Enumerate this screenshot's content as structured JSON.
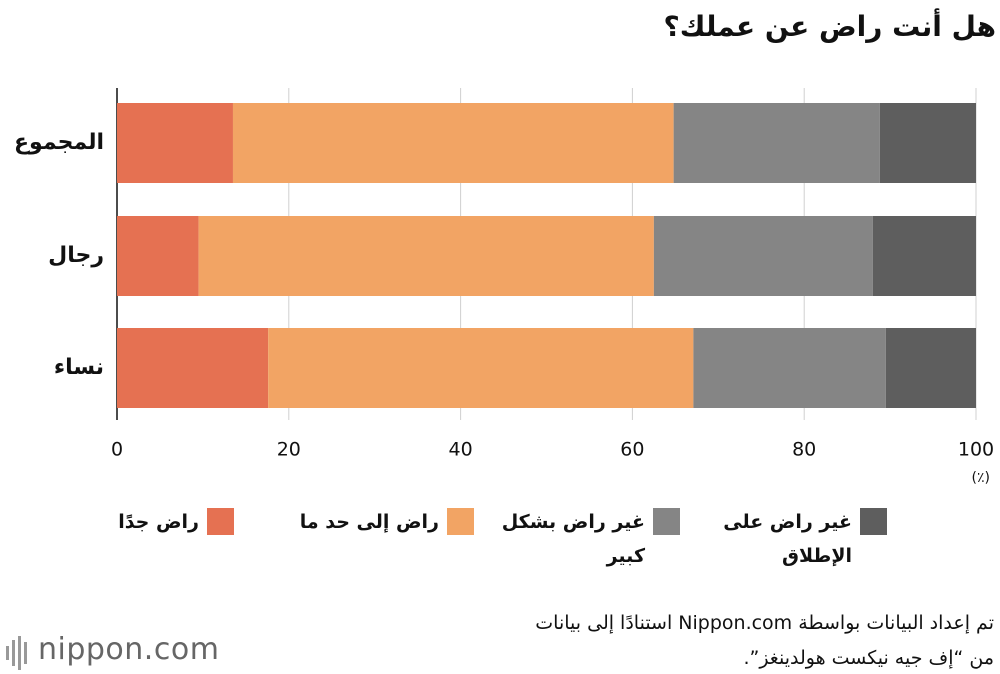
{
  "chart_data": {
    "type": "stacked-bar-horizontal",
    "title": "هل أنت راض عن عملك؟",
    "categories": [
      "المجموع",
      "رجال",
      "نساء"
    ],
    "series": [
      {
        "name": "راض جدًا",
        "color": "#e57152",
        "values": [
          13.5,
          9.5,
          17.6
        ]
      },
      {
        "name": "راض إلى حد ما",
        "color": "#f2a464",
        "values": [
          51.3,
          53.0,
          49.5
        ]
      },
      {
        "name": "غير راض بشكل كبير",
        "color": "#858585",
        "values": [
          24.0,
          25.5,
          22.4
        ]
      },
      {
        "name": "غير راض على الإطلاق",
        "color": "#5e5e5e",
        "values": [
          11.2,
          12.0,
          10.5
        ]
      }
    ],
    "xlim": [
      0,
      100
    ],
    "xticks": [
      0,
      20,
      40,
      60,
      80,
      100
    ],
    "unit": "(٪)",
    "grid": true
  },
  "source": [
    "تم إعداد البيانات بواسطة Nippon.com استنادًا إلى بيانات",
    "من “إف جيه نيكست هولدينغز”."
  ],
  "logo": "nippon.com"
}
